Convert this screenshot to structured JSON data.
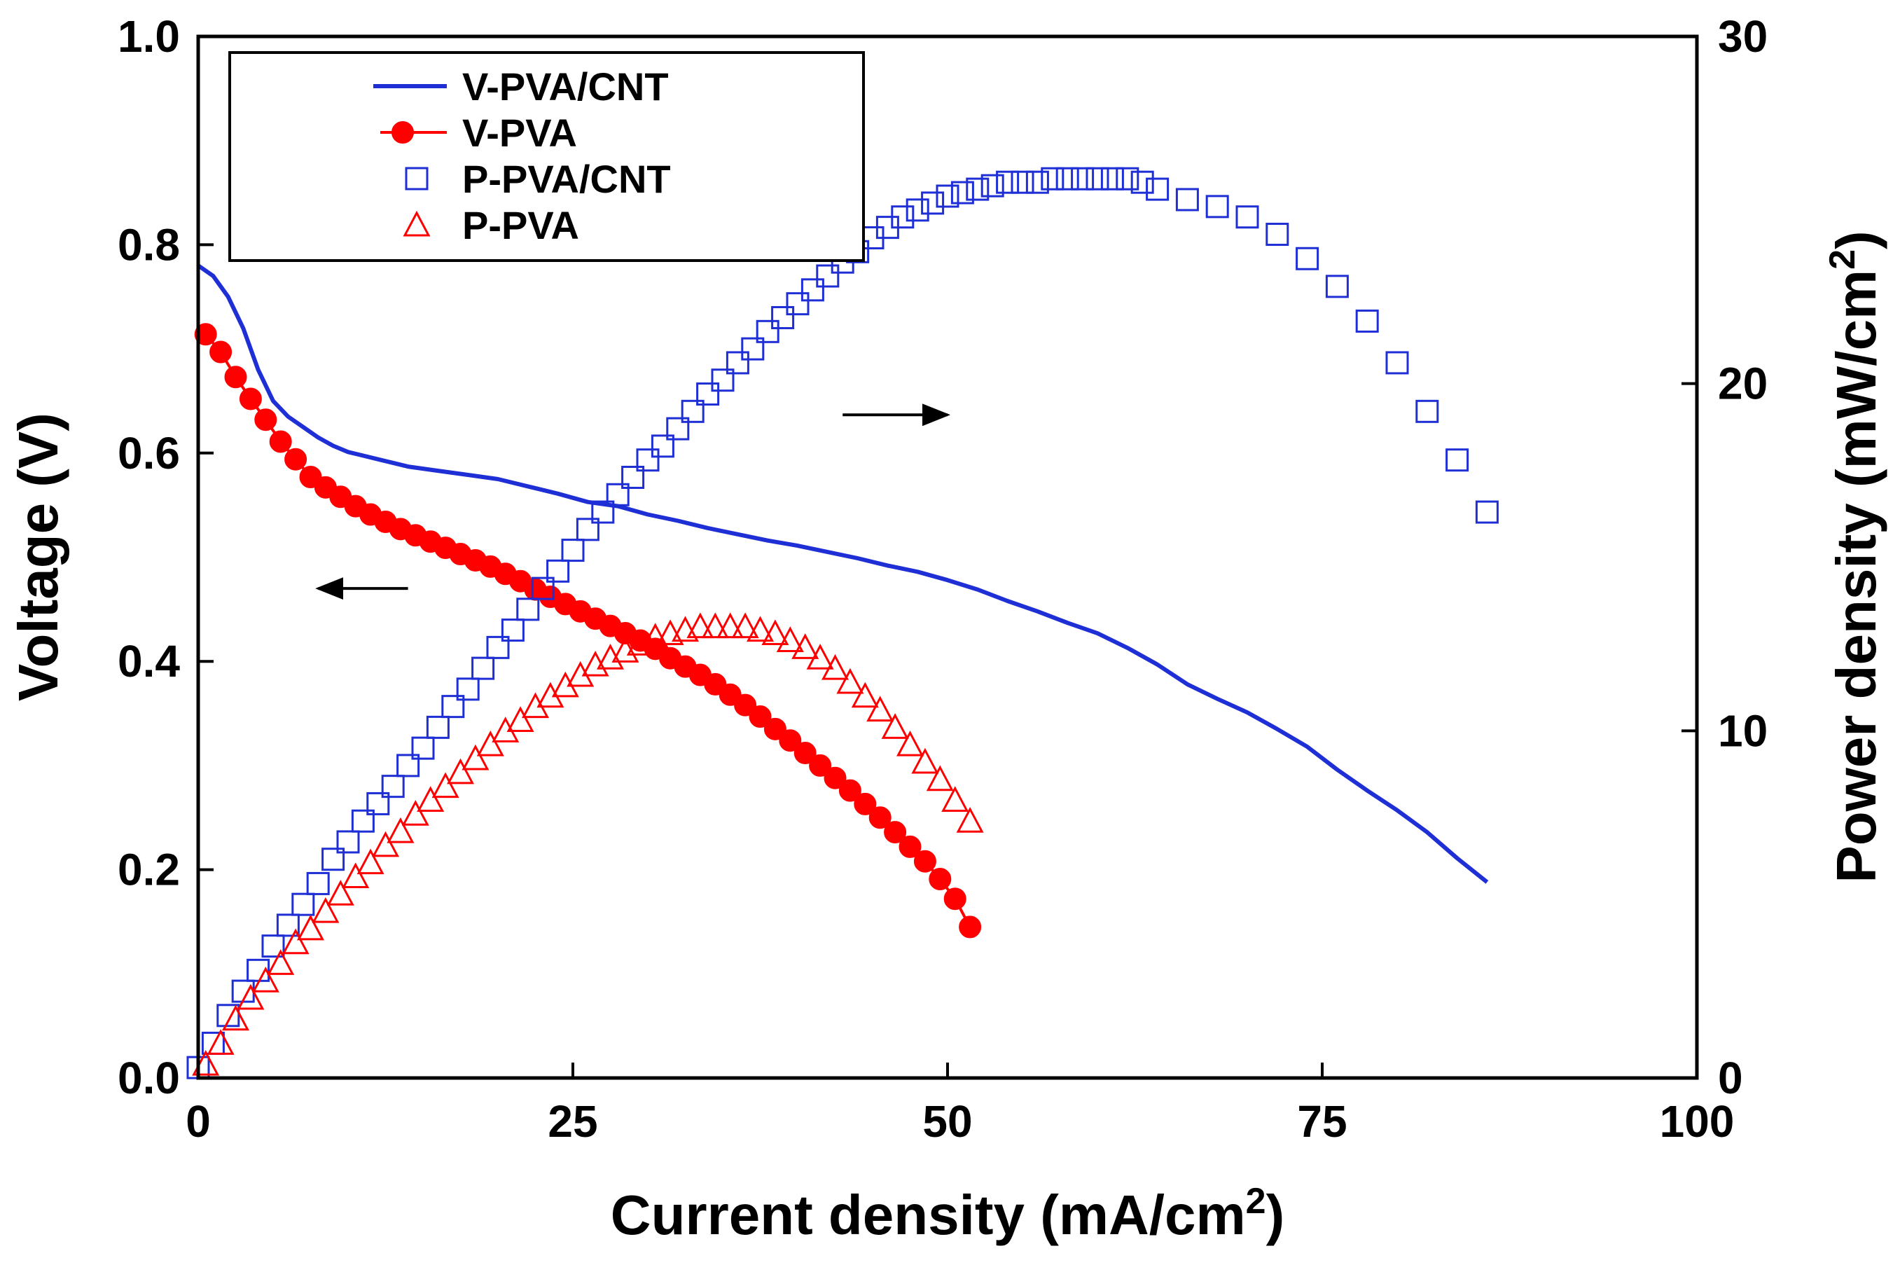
{
  "chart_data": {
    "type": "line",
    "title": "",
    "xlabel": "Current density (mA/cm",
    "xlabel_sup": "2",
    "xlabel_end": ")",
    "ylabel": "Voltage (V)",
    "y2label": "Power density (mW/cm",
    "y2label_sup": "2",
    "y2label_end": ")",
    "xlim": [
      0,
      100
    ],
    "ylim": [
      0,
      1.0
    ],
    "y2lim": [
      0,
      30
    ],
    "x_ticks": [
      "0",
      "25",
      "50",
      "75",
      "100"
    ],
    "x_tick_values": [
      0,
      25,
      50,
      75,
      100
    ],
    "y_ticks": [
      "0.0",
      "0.2",
      "0.4",
      "0.6",
      "0.8",
      "1.0"
    ],
    "y_tick_values": [
      0,
      0.2,
      0.4,
      0.6,
      0.8,
      1.0
    ],
    "y2_ticks": [
      "0",
      "10",
      "20",
      "30"
    ],
    "y2_tick_values": [
      0,
      10,
      20,
      30
    ],
    "legend_position": "top-left",
    "annotations": [
      {
        "type": "arrow",
        "direction": "left",
        "axis": "left",
        "x_from": 14,
        "x_to": 8,
        "y": 0.47
      },
      {
        "type": "arrow",
        "direction": "right",
        "axis": "right",
        "x_from": 43,
        "x_to": 50,
        "y": 19.1
      }
    ],
    "series": [
      {
        "name": "V-PVA/CNT",
        "axis": "left",
        "style": "line",
        "color": "#1f2fd6",
        "x": [
          0,
          1,
          2,
          3,
          4,
          5,
          6,
          7,
          8,
          9,
          10,
          12,
          14,
          16,
          18,
          20,
          22,
          24,
          26,
          28,
          30,
          32,
          34,
          36,
          38,
          40,
          42,
          44,
          46,
          48,
          50,
          52,
          54,
          56,
          58,
          60,
          62,
          64,
          66,
          68,
          70,
          72,
          74,
          76,
          78,
          80,
          82,
          84,
          86
        ],
        "values": [
          0.78,
          0.77,
          0.75,
          0.72,
          0.68,
          0.65,
          0.635,
          0.625,
          0.615,
          0.607,
          0.601,
          0.594,
          0.587,
          0.583,
          0.579,
          0.575,
          0.568,
          0.561,
          0.553,
          0.549,
          0.541,
          0.535,
          0.528,
          0.522,
          0.516,
          0.511,
          0.505,
          0.499,
          0.492,
          0.486,
          0.478,
          0.469,
          0.458,
          0.448,
          0.437,
          0.427,
          0.413,
          0.397,
          0.378,
          0.364,
          0.351,
          0.335,
          0.318,
          0.296,
          0.276,
          0.257,
          0.236,
          0.211,
          0.188
        ]
      },
      {
        "name": "V-PVA",
        "axis": "left",
        "style": "filled-circle-line",
        "color": "#ff0000",
        "x": [
          0.5,
          1.5,
          2.5,
          3.5,
          4.5,
          5.5,
          6.5,
          7.5,
          8.5,
          9.5,
          10.5,
          11.5,
          12.5,
          13.5,
          14.5,
          15.5,
          16.5,
          17.5,
          18.5,
          19.5,
          20.5,
          21.5,
          22.5,
          23.5,
          24.5,
          25.5,
          26.5,
          27.5,
          28.5,
          29.5,
          30.5,
          31.5,
          32.5,
          33.5,
          34.5,
          35.5,
          36.5,
          37.5,
          38.5,
          39.5,
          40.5,
          41.5,
          42.5,
          43.5,
          44.5,
          45.5,
          46.5,
          47.5,
          48.5,
          49.5,
          50.5,
          51.5
        ],
        "values": [
          0.714,
          0.697,
          0.673,
          0.652,
          0.632,
          0.611,
          0.594,
          0.577,
          0.567,
          0.558,
          0.549,
          0.541,
          0.534,
          0.527,
          0.521,
          0.515,
          0.509,
          0.503,
          0.497,
          0.491,
          0.484,
          0.477,
          0.469,
          0.462,
          0.455,
          0.448,
          0.441,
          0.434,
          0.427,
          0.42,
          0.412,
          0.403,
          0.395,
          0.387,
          0.378,
          0.368,
          0.358,
          0.347,
          0.335,
          0.324,
          0.312,
          0.3,
          0.288,
          0.276,
          0.263,
          0.25,
          0.236,
          0.222,
          0.208,
          0.191,
          0.172,
          0.145
        ]
      },
      {
        "name": "P-PVA/CNT",
        "axis": "right",
        "style": "open-square",
        "color": "#1f2fd6",
        "x": [
          0,
          1,
          2,
          3,
          4,
          5,
          6,
          7,
          8,
          9,
          10,
          11,
          12,
          13,
          14,
          15,
          16,
          17,
          18,
          19,
          20,
          21,
          22,
          23,
          24,
          25,
          26,
          27,
          28,
          29,
          30,
          31,
          32,
          33,
          34,
          35,
          36,
          37,
          38,
          39,
          40,
          41,
          42,
          43,
          44,
          45,
          46,
          47,
          48,
          49,
          50,
          51,
          52,
          53,
          54,
          55,
          56,
          57,
          58,
          59,
          60,
          61,
          62,
          63,
          64,
          66,
          68,
          70,
          72,
          74,
          76,
          78,
          80,
          82,
          84,
          86
        ],
        "values": [
          0.3,
          1.0,
          1.8,
          2.5,
          3.1,
          3.8,
          4.4,
          5.0,
          5.6,
          6.3,
          6.8,
          7.4,
          7.9,
          8.4,
          9.0,
          9.5,
          10.1,
          10.7,
          11.2,
          11.8,
          12.4,
          12.9,
          13.5,
          14.1,
          14.6,
          15.2,
          15.8,
          16.3,
          16.8,
          17.3,
          17.8,
          18.2,
          18.7,
          19.2,
          19.7,
          20.1,
          20.6,
          21.0,
          21.5,
          21.9,
          22.3,
          22.7,
          23.1,
          23.5,
          23.8,
          24.2,
          24.5,
          24.8,
          25.0,
          25.2,
          25.4,
          25.5,
          25.6,
          25.7,
          25.8,
          25.8,
          25.8,
          25.9,
          25.9,
          25.9,
          25.9,
          25.9,
          25.9,
          25.8,
          25.6,
          25.3,
          25.1,
          24.8,
          24.3,
          23.6,
          22.8,
          21.8,
          20.6,
          19.2,
          17.8,
          16.3
        ]
      },
      {
        "name": "P-PVA",
        "axis": "right",
        "style": "open-triangle",
        "color": "#ff0000",
        "x": [
          0.5,
          1.5,
          2.5,
          3.5,
          4.5,
          5.5,
          6.5,
          7.5,
          8.5,
          9.5,
          10.5,
          11.5,
          12.5,
          13.5,
          14.5,
          15.5,
          16.5,
          17.5,
          18.5,
          19.5,
          20.5,
          21.5,
          22.5,
          23.5,
          24.5,
          25.5,
          26.5,
          27.5,
          28.5,
          29.5,
          30.5,
          31.5,
          32.5,
          33.5,
          34.5,
          35.5,
          36.5,
          37.5,
          38.5,
          39.5,
          40.5,
          41.5,
          42.5,
          43.5,
          44.5,
          45.5,
          46.5,
          47.5,
          48.5,
          49.5,
          50.5,
          51.5
        ],
        "values": [
          0.4,
          1.0,
          1.7,
          2.3,
          2.8,
          3.3,
          3.9,
          4.3,
          4.8,
          5.3,
          5.8,
          6.2,
          6.7,
          7.1,
          7.6,
          8.0,
          8.4,
          8.8,
          9.2,
          9.6,
          10.0,
          10.3,
          10.7,
          11.0,
          11.3,
          11.6,
          11.9,
          12.1,
          12.3,
          12.5,
          12.7,
          12.8,
          12.9,
          13.0,
          13.0,
          13.0,
          13.0,
          12.9,
          12.8,
          12.6,
          12.4,
          12.1,
          11.8,
          11.4,
          11.0,
          10.6,
          10.1,
          9.6,
          9.1,
          8.6,
          8.0,
          7.4
        ]
      }
    ]
  }
}
